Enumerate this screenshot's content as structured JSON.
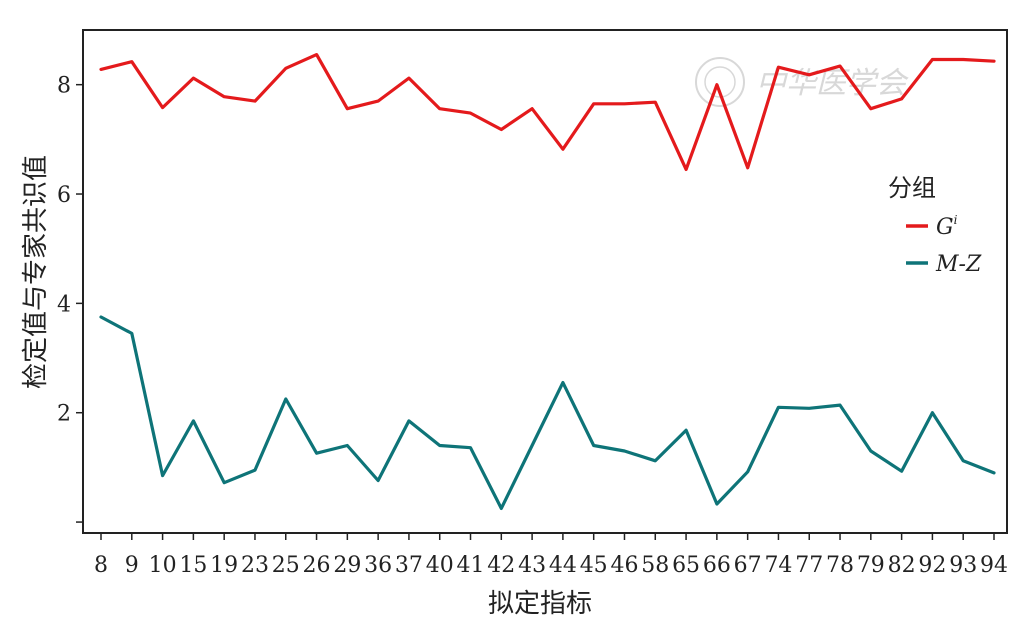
{
  "chart_data": {
    "type": "line",
    "title": "",
    "xlabel": "拟定指标",
    "ylabel": "检定值与专家共识值",
    "categories": [
      "8",
      "9",
      "10",
      "15",
      "19",
      "23",
      "25",
      "26",
      "29",
      "36",
      "37",
      "40",
      "41",
      "42",
      "43",
      "44",
      "45",
      "46",
      "58",
      "65",
      "66",
      "67",
      "74",
      "77",
      "78",
      "79",
      "82",
      "92",
      "93",
      "94"
    ],
    "ylim": [
      -0.2,
      9.0
    ],
    "yticks": [
      0,
      2,
      4,
      6,
      8
    ],
    "ytick_labels": [
      "",
      "2",
      "4",
      "6",
      "8"
    ],
    "grid": false,
    "legend": {
      "title": "分组",
      "placement": "right"
    },
    "series": [
      {
        "name": "G",
        "name_sup": "i",
        "color": "#e41a1c",
        "values": [
          8.28,
          8.42,
          7.58,
          8.12,
          7.78,
          7.7,
          8.3,
          8.55,
          7.56,
          7.7,
          8.12,
          7.56,
          7.48,
          7.18,
          7.56,
          6.82,
          7.65,
          7.65,
          7.68,
          6.45,
          8.0,
          6.48,
          8.32,
          8.18,
          8.34,
          7.56,
          7.74,
          8.46,
          8.46,
          8.43
        ]
      },
      {
        "name": "M-Z",
        "color": "#0e7478",
        "values": [
          3.75,
          3.45,
          0.85,
          1.85,
          0.72,
          0.95,
          2.25,
          1.26,
          1.4,
          0.76,
          1.85,
          1.4,
          1.36,
          0.25,
          1.4,
          2.55,
          1.4,
          1.3,
          1.12,
          1.68,
          0.33,
          0.92,
          2.1,
          2.08,
          2.14,
          1.3,
          0.93,
          2.0,
          1.12,
          0.9
        ]
      }
    ]
  },
  "watermark_text": "中华医学会"
}
